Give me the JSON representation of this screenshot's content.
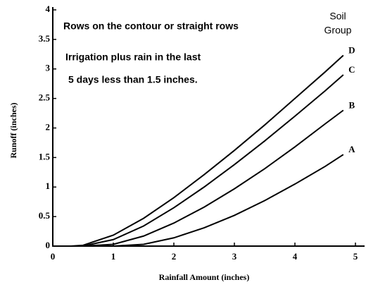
{
  "chart_data": {
    "type": "line",
    "annotations": [
      "Rows on the contour or straight rows",
      "Irrigation plus rain in the last",
      "5 days less than 1.5 inches."
    ],
    "legend_title": [
      "Soil",
      "Group"
    ],
    "x_label": "Rainfall Amount (inches)",
    "y_label": "Runoff (inches)",
    "x": [
      0.3,
      0.5,
      1,
      1.5,
      2,
      2.5,
      3,
      3.5,
      4,
      4.5,
      4.8
    ],
    "series": [
      {
        "name": "D",
        "color": "#000000",
        "values": [
          0,
          0.014,
          0.185,
          0.47,
          0.82,
          1.21,
          1.62,
          2.05,
          2.5,
          2.95,
          3.23
        ]
      },
      {
        "name": "C",
        "color": "#000000",
        "values": [
          0,
          0.002,
          0.11,
          0.34,
          0.65,
          1.0,
          1.38,
          1.78,
          2.2,
          2.63,
          2.9
        ]
      },
      {
        "name": "B",
        "color": "#000000",
        "values": [
          0,
          0,
          0.03,
          0.17,
          0.39,
          0.66,
          0.97,
          1.31,
          1.68,
          2.07,
          2.3
        ]
      },
      {
        "name": "A",
        "color": "#000000",
        "values": [
          0,
          0,
          0,
          0.03,
          0.14,
          0.31,
          0.52,
          0.77,
          1.05,
          1.35,
          1.55
        ]
      }
    ],
    "xlim": [
      0,
      5
    ],
    "xticks": [
      0,
      1,
      2,
      3,
      4,
      5
    ],
    "ylim": [
      0,
      4
    ],
    "yticks": [
      0,
      0.5,
      1,
      1.5,
      2,
      2.5,
      3,
      3.5,
      4
    ],
    "grid": false
  }
}
